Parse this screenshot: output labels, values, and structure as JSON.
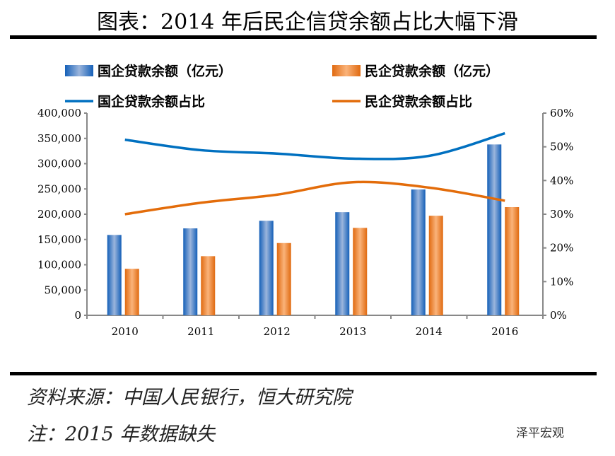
{
  "title": "图表：2014 年后民企信贷余额占比大幅下滑",
  "source": "资料来源：中国人民银行，恒大研究院",
  "note": "注：2015 年数据缺失",
  "watermark": "泽平宏观",
  "chart_data": {
    "type": "bar",
    "categories": [
      "2010",
      "2011",
      "2012",
      "2013",
      "2014",
      "2016"
    ],
    "series": [
      {
        "name": "国企贷款余额（亿元）",
        "type": "bar",
        "axis": "left",
        "color": "#1f6fc0",
        "values": [
          159000,
          172000,
          187000,
          204000,
          249000,
          338000
        ]
      },
      {
        "name": "民企贷款余额（亿元）",
        "type": "bar",
        "axis": "left",
        "color": "#e87722",
        "values": [
          92000,
          117000,
          143000,
          173000,
          197000,
          214000
        ]
      },
      {
        "name": "国企贷款余额占比",
        "type": "line",
        "axis": "right",
        "color": "#0070c0",
        "values": [
          52.1,
          49.0,
          48.0,
          46.5,
          47.3,
          54.0
        ]
      },
      {
        "name": "民企贷款余额占比",
        "type": "line",
        "axis": "right",
        "color": "#e36c0a",
        "values": [
          30.0,
          33.4,
          35.8,
          39.5,
          37.9,
          34.0
        ]
      }
    ],
    "left_ticks": [
      "0",
      "50,000",
      "100,000",
      "150,000",
      "200,000",
      "250,000",
      "300,000",
      "350,000",
      "400,000"
    ],
    "right_ticks": [
      "0%",
      "10%",
      "20%",
      "30%",
      "40%",
      "50%",
      "60%"
    ],
    "ylim": [
      0,
      400000
    ],
    "y2lim": [
      0,
      60
    ],
    "legend": "top"
  }
}
